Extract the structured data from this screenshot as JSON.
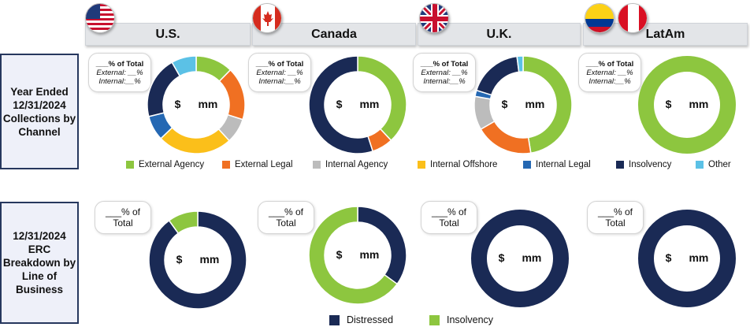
{
  "columns": [
    {
      "title": "U.S.",
      "flag_icons": [
        "us-flag-icon"
      ]
    },
    {
      "title": "Canada",
      "flag_icons": [
        "canada-flag-icon"
      ]
    },
    {
      "title": "U.K.",
      "flag_icons": [
        "uk-flag-icon"
      ]
    },
    {
      "title": "LatAm",
      "flag_icons": [
        "colombia-flag-icon",
        "peru-flag-icon"
      ]
    }
  ],
  "rows": [
    {
      "label": "Year Ended 12/31/2024 Collections by Channel"
    },
    {
      "label": "12/31/2024 ERC Breakdown by Line of Business"
    }
  ],
  "callouts_row1": {
    "pct": "___% of Total",
    "ext": "External: __%",
    "int": "Internal:__%"
  },
  "callouts_row2": {
    "pct_line1": "___% of",
    "pct_line2": "Total"
  },
  "center": {
    "dollar": "$",
    "unit": "mm"
  },
  "chart_data": [
    {
      "type": "pie",
      "group": "Collections by Channel",
      "categories": [
        "External Agency",
        "External Legal",
        "Internal Agency",
        "Internal Offshore",
        "Internal Legal",
        "Insolvency",
        "Other"
      ],
      "colors": [
        "#8dc63f",
        "#f07022",
        "#bcbcbc",
        "#fbbf1a",
        "#2568b3",
        "#1a2a55",
        "#5bc1e6"
      ],
      "charts": [
        {
          "column": "U.S.",
          "values": [
            12,
            17,
            8,
            24,
            8,
            20,
            8
          ]
        },
        {
          "column": "Canada",
          "values": [
            38,
            7,
            0,
            0,
            0,
            55,
            0
          ]
        },
        {
          "column": "U.K.",
          "values": [
            47,
            19,
            11,
            0,
            2,
            18,
            2
          ]
        },
        {
          "column": "LatAm",
          "values": [
            100,
            0,
            0,
            0,
            0,
            0,
            0
          ]
        }
      ]
    },
    {
      "type": "pie",
      "group": "ERC Breakdown by Line of Business",
      "categories": [
        "Distressed",
        "Insolvency"
      ],
      "colors": [
        "#1a2a55",
        "#8dc63f"
      ],
      "charts": [
        {
          "column": "U.S.",
          "values": [
            90,
            10
          ]
        },
        {
          "column": "Canada",
          "values": [
            35,
            65
          ]
        },
        {
          "column": "U.K.",
          "values": [
            100,
            0
          ]
        },
        {
          "column": "LatAm",
          "values": [
            100,
            0
          ]
        }
      ]
    }
  ]
}
